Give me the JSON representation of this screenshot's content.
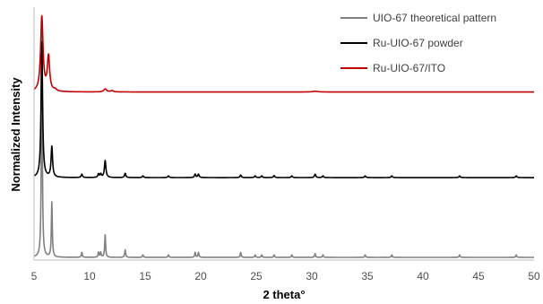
{
  "chart_data": {
    "type": "line",
    "title": "",
    "xlabel": "2 theta°",
    "ylabel": "Normalized Intensity",
    "xlim": [
      5,
      50
    ],
    "xticks": [
      5,
      10,
      15,
      20,
      25,
      30,
      35,
      40,
      45,
      50
    ],
    "y_ticks_shown": false,
    "grid": false,
    "legend_position": "top-right",
    "series": [
      {
        "name": "UIO-67 theoretical pattern",
        "color": "#808080",
        "offset": 0,
        "baseline": 0,
        "peaks": [
          {
            "x": 5.7,
            "h": 0.9,
            "w": 0.05
          },
          {
            "x": 6.6,
            "h": 0.22,
            "w": 0.05
          },
          {
            "x": 9.3,
            "h": 0.02,
            "w": 0.05
          },
          {
            "x": 10.8,
            "h": 0.02,
            "w": 0.05
          },
          {
            "x": 11.0,
            "h": 0.02,
            "w": 0.05
          },
          {
            "x": 11.4,
            "h": 0.09,
            "w": 0.05
          },
          {
            "x": 13.2,
            "h": 0.03,
            "w": 0.05
          },
          {
            "x": 14.8,
            "h": 0.01,
            "w": 0.05
          },
          {
            "x": 17.1,
            "h": 0.01,
            "w": 0.05
          },
          {
            "x": 19.5,
            "h": 0.02,
            "w": 0.05
          },
          {
            "x": 19.8,
            "h": 0.02,
            "w": 0.05
          },
          {
            "x": 23.6,
            "h": 0.02,
            "w": 0.05
          },
          {
            "x": 24.9,
            "h": 0.01,
            "w": 0.05
          },
          {
            "x": 25.5,
            "h": 0.01,
            "w": 0.05
          },
          {
            "x": 26.6,
            "h": 0.01,
            "w": 0.05
          },
          {
            "x": 28.2,
            "h": 0.01,
            "w": 0.05
          },
          {
            "x": 30.3,
            "h": 0.015,
            "w": 0.05
          },
          {
            "x": 31.0,
            "h": 0.01,
            "w": 0.05
          },
          {
            "x": 34.8,
            "h": 0.01,
            "w": 0.05
          },
          {
            "x": 37.2,
            "h": 0.01,
            "w": 0.05
          },
          {
            "x": 43.3,
            "h": 0.01,
            "w": 0.05
          },
          {
            "x": 48.4,
            "h": 0.01,
            "w": 0.05
          }
        ]
      },
      {
        "name": "Ru-UIO-67 powder",
        "color": "#000000",
        "offset": 0.32,
        "baseline": 0,
        "peaks": [
          {
            "x": 5.7,
            "h": 0.8,
            "w": 0.08
          },
          {
            "x": 6.6,
            "h": 0.18,
            "w": 0.08
          },
          {
            "x": 9.3,
            "h": 0.02,
            "w": 0.07
          },
          {
            "x": 10.8,
            "h": 0.02,
            "w": 0.07
          },
          {
            "x": 11.0,
            "h": 0.02,
            "w": 0.07
          },
          {
            "x": 11.4,
            "h": 0.1,
            "w": 0.08
          },
          {
            "x": 13.2,
            "h": 0.025,
            "w": 0.07
          },
          {
            "x": 14.8,
            "h": 0.01,
            "w": 0.07
          },
          {
            "x": 17.1,
            "h": 0.01,
            "w": 0.07
          },
          {
            "x": 19.5,
            "h": 0.02,
            "w": 0.07
          },
          {
            "x": 19.8,
            "h": 0.02,
            "w": 0.07
          },
          {
            "x": 23.6,
            "h": 0.015,
            "w": 0.07
          },
          {
            "x": 24.9,
            "h": 0.01,
            "w": 0.07
          },
          {
            "x": 25.5,
            "h": 0.01,
            "w": 0.07
          },
          {
            "x": 26.6,
            "h": 0.012,
            "w": 0.07
          },
          {
            "x": 28.2,
            "h": 0.01,
            "w": 0.07
          },
          {
            "x": 30.3,
            "h": 0.02,
            "w": 0.07
          },
          {
            "x": 31.0,
            "h": 0.01,
            "w": 0.07
          },
          {
            "x": 34.8,
            "h": 0.01,
            "w": 0.07
          },
          {
            "x": 37.2,
            "h": 0.01,
            "w": 0.07
          },
          {
            "x": 43.3,
            "h": 0.01,
            "w": 0.07
          },
          {
            "x": 48.4,
            "h": 0.01,
            "w": 0.07
          }
        ]
      },
      {
        "name": "Ru-UIO-67/ITO",
        "color": "#c00000",
        "offset": 0.66,
        "baseline": 0.01,
        "peaks": [
          {
            "x": 5.7,
            "h": 0.88,
            "w": 0.13
          },
          {
            "x": 6.2,
            "h": 0.01,
            "w": 0.3
          },
          {
            "x": 6.3,
            "h": 0.4,
            "w": 0.12
          },
          {
            "x": 6.9,
            "h": 0.02,
            "w": 0.15
          },
          {
            "x": 11.4,
            "h": 0.035,
            "w": 0.15
          },
          {
            "x": 12.0,
            "h": 0.015,
            "w": 0.15
          },
          {
            "x": 30.3,
            "h": 0.008,
            "w": 0.3
          }
        ]
      }
    ]
  },
  "legend": {
    "items": [
      {
        "label": "UIO-67 theoretical pattern",
        "color": "#808080"
      },
      {
        "label": "Ru-UIO-67 powder",
        "color": "#000000"
      },
      {
        "label": "Ru-UIO-67/ITO",
        "color": "#c00000"
      }
    ]
  }
}
